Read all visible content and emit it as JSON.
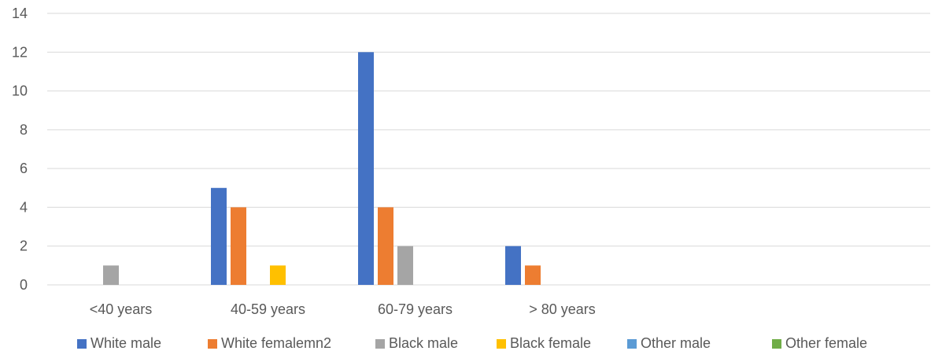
{
  "chart_data": {
    "type": "bar",
    "categories": [
      "<40 years",
      "40-59 years",
      "60-79 years",
      "> 80 years",
      "",
      ""
    ],
    "series": [
      {
        "name": "White male",
        "color": "#4472C4",
        "values": [
          0,
          5,
          12,
          2,
          0,
          0
        ]
      },
      {
        "name": "White femalemn2",
        "color": "#ED7D31",
        "values": [
          0,
          4,
          4,
          1,
          0,
          0
        ]
      },
      {
        "name": "Black male",
        "color": "#A5A5A5",
        "values": [
          1,
          0,
          2,
          0,
          0,
          0
        ]
      },
      {
        "name": "Black female",
        "color": "#FFC000",
        "values": [
          0,
          1,
          0,
          0,
          0,
          0
        ]
      },
      {
        "name": "Other male",
        "color": "#5B9BD5",
        "values": [
          0,
          0,
          0,
          0,
          0,
          0
        ]
      },
      {
        "name": "Other female",
        "color": "#70AD47",
        "values": [
          0,
          0,
          0,
          0,
          0,
          0
        ]
      }
    ],
    "y_ticks": [
      "0",
      "2",
      "4",
      "6",
      "8",
      "10",
      "12",
      "14"
    ],
    "ylim": [
      0,
      14
    ],
    "grid": true,
    "legend_position": "bottom"
  }
}
